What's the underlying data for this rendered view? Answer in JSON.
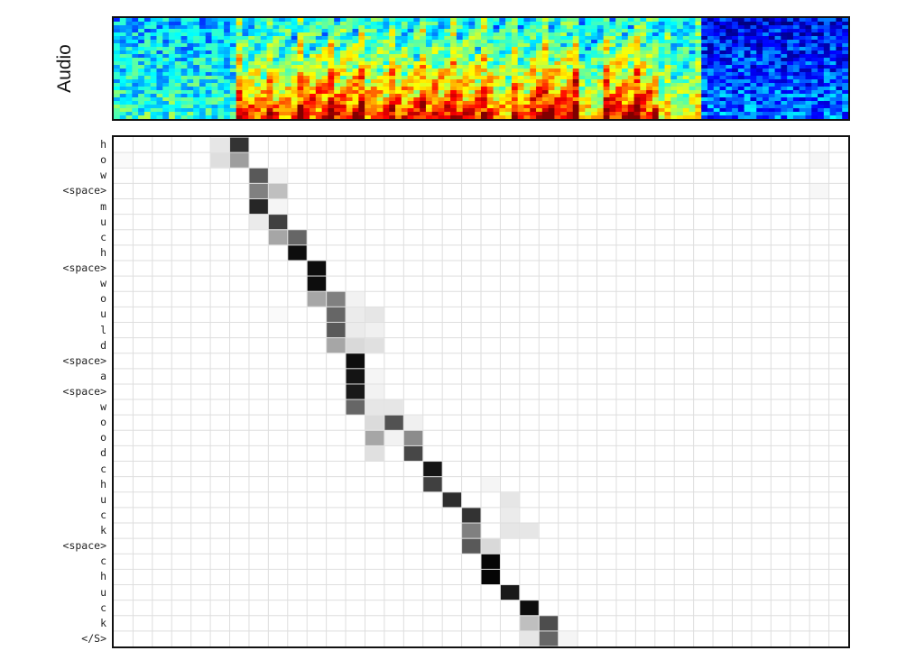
{
  "chart_data": [
    {
      "type": "heatmap",
      "name": "spectrogram",
      "ylabel": "Audio",
      "colormap": "jet",
      "n_time_frames": 120,
      "n_freq_bins": 28,
      "speech_regions": [
        {
          "start": 0.17,
          "end": 0.25,
          "level": 0.75
        },
        {
          "start": 0.25,
          "end": 0.34,
          "level": 0.9
        },
        {
          "start": 0.34,
          "end": 0.42,
          "level": 0.8
        },
        {
          "start": 0.42,
          "end": 0.52,
          "level": 0.85
        },
        {
          "start": 0.52,
          "end": 0.57,
          "level": 0.7
        },
        {
          "start": 0.57,
          "end": 0.63,
          "level": 0.95
        },
        {
          "start": 0.63,
          "end": 0.67,
          "level": 0.6
        },
        {
          "start": 0.67,
          "end": 0.74,
          "level": 0.9
        },
        {
          "start": 0.74,
          "end": 0.8,
          "level": 0.5
        }
      ]
    },
    {
      "type": "heatmap",
      "name": "attention-alignment",
      "colormap": "gray_r",
      "n_cols": 38,
      "rows": [
        "h",
        "o",
        "w",
        "<space>",
        "m",
        "u",
        "c",
        "h",
        "<space>",
        "w",
        "o",
        "u",
        "l",
        "d",
        "<space>",
        "a",
        "<space>",
        "w",
        "o",
        "o",
        "d",
        "c",
        "h",
        "u",
        "c",
        "k",
        "<space>",
        "c",
        "h",
        "u",
        "c",
        "k",
        "</S>"
      ],
      "cells": [
        [
          [
            5,
            0.1
          ],
          [
            6,
            0.8
          ]
        ],
        [
          [
            5,
            0.13
          ],
          [
            6,
            0.38
          ],
          [
            0,
            0.02
          ],
          [
            36,
            0.03
          ]
        ],
        [
          [
            7,
            0.65
          ],
          [
            8,
            0.05
          ]
        ],
        [
          [
            7,
            0.5
          ],
          [
            8,
            0.25
          ],
          [
            36,
            0.03
          ]
        ],
        [
          [
            7,
            0.85
          ],
          [
            8,
            0.04
          ]
        ],
        [
          [
            7,
            0.08
          ],
          [
            8,
            0.75
          ]
        ],
        [
          [
            8,
            0.35
          ],
          [
            9,
            0.6
          ]
        ],
        [
          [
            9,
            0.95
          ]
        ],
        [
          [
            10,
            0.95
          ]
        ],
        [
          [
            10,
            0.95
          ]
        ],
        [
          [
            10,
            0.35
          ],
          [
            11,
            0.5
          ],
          [
            12,
            0.05
          ]
        ],
        [
          [
            11,
            0.6
          ],
          [
            12,
            0.08
          ],
          [
            13,
            0.1
          ],
          [
            8,
            0.02
          ]
        ],
        [
          [
            11,
            0.65
          ],
          [
            12,
            0.08
          ],
          [
            13,
            0.06
          ]
        ],
        [
          [
            11,
            0.35
          ],
          [
            12,
            0.15
          ],
          [
            13,
            0.12
          ]
        ],
        [
          [
            12,
            0.95
          ]
        ],
        [
          [
            12,
            0.92
          ],
          [
            13,
            0.04
          ]
        ],
        [
          [
            12,
            0.9
          ],
          [
            13,
            0.05
          ]
        ],
        [
          [
            12,
            0.6
          ],
          [
            13,
            0.1
          ],
          [
            14,
            0.1
          ]
        ],
        [
          [
            13,
            0.14
          ],
          [
            14,
            0.68
          ],
          [
            15,
            0.06
          ]
        ],
        [
          [
            13,
            0.35
          ],
          [
            14,
            0.05
          ],
          [
            15,
            0.45
          ]
        ],
        [
          [
            13,
            0.12
          ],
          [
            15,
            0.72
          ]
        ],
        [
          [
            16,
            0.92
          ]
        ],
        [
          [
            16,
            0.75
          ],
          [
            19,
            0.04
          ]
        ],
        [
          [
            17,
            0.82
          ],
          [
            20,
            0.1
          ]
        ],
        [
          [
            18,
            0.8
          ],
          [
            20,
            0.08
          ]
        ],
        [
          [
            18,
            0.5
          ],
          [
            20,
            0.1
          ],
          [
            21,
            0.1
          ]
        ],
        [
          [
            18,
            0.65
          ],
          [
            19,
            0.15
          ]
        ],
        [
          [
            19,
            0.98
          ]
        ],
        [
          [
            19,
            0.98
          ]
        ],
        [
          [
            20,
            0.9
          ]
        ],
        [
          [
            21,
            0.95
          ]
        ],
        [
          [
            21,
            0.25
          ],
          [
            22,
            0.7
          ]
        ],
        [
          [
            21,
            0.1
          ],
          [
            22,
            0.6
          ],
          [
            23,
            0.04
          ]
        ]
      ]
    }
  ]
}
